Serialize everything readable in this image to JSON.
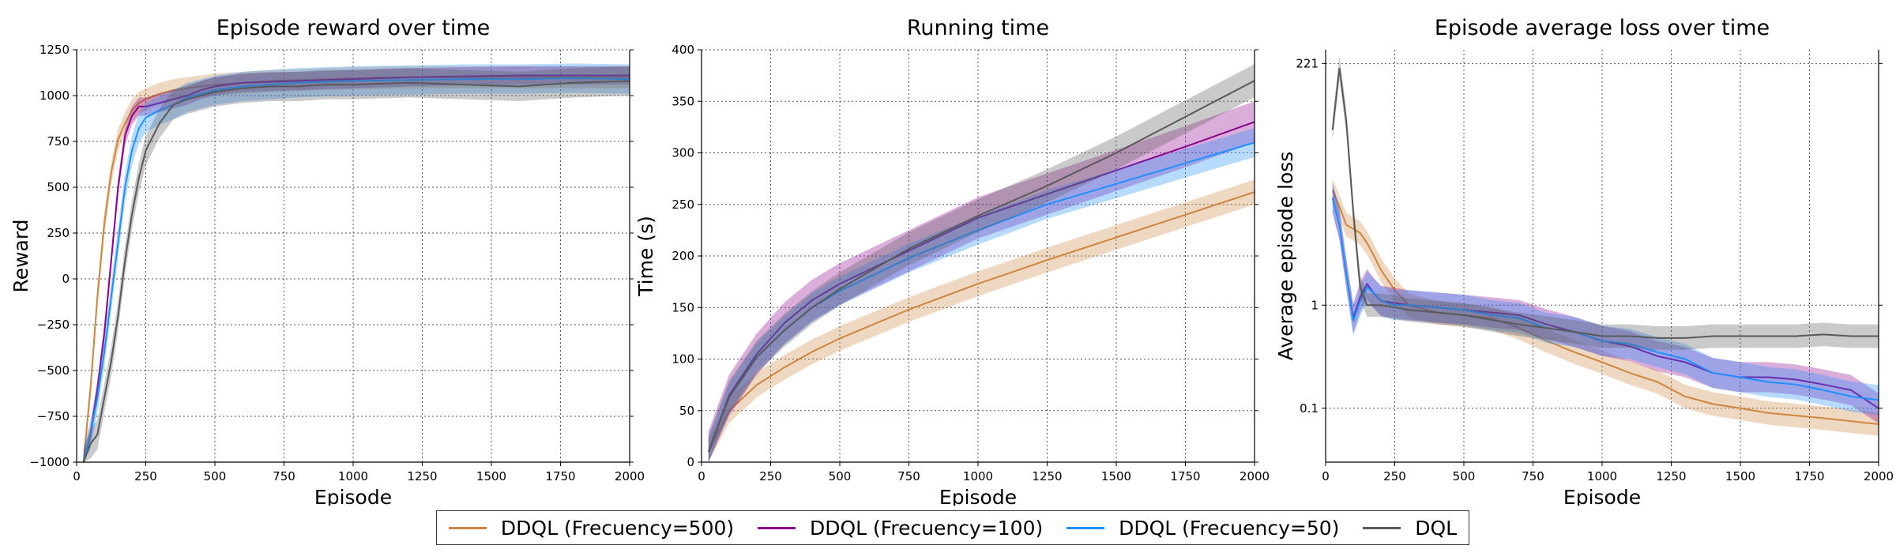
{
  "colors": {
    "ddql500": "#cd853f",
    "ddql100": "#8b008b",
    "ddql50": "#1e90ff",
    "dql": "#595959"
  },
  "legend": [
    {
      "label": "DDQL (Frecuency=500)",
      "color_key": "ddql500"
    },
    {
      "label": "DDQL (Frecuency=100)",
      "color_key": "ddql100"
    },
    {
      "label": "DDQL (Frecuency=50)",
      "color_key": "ddql50"
    },
    {
      "label": "DQL",
      "color_key": "dql"
    }
  ],
  "chart_data": [
    {
      "type": "line",
      "title": "Episode reward over time",
      "xlabel": "Episode",
      "ylabel": "Reward",
      "xlim": [
        0,
        2000
      ],
      "ylim": [
        -1000,
        1250
      ],
      "yscale": "linear",
      "grid": true,
      "xticks": [
        0,
        250,
        500,
        750,
        1000,
        1250,
        1500,
        1750,
        2000
      ],
      "xtick_labels": [
        "0",
        "250",
        "500",
        "750",
        "1000",
        "1250",
        "1500",
        "1750",
        "2000"
      ],
      "yticks": [
        -1000,
        -750,
        -500,
        -250,
        0,
        250,
        500,
        750,
        1000,
        1250
      ],
      "ytick_labels": [
        "−1000",
        "−750",
        "−500",
        "−250",
        "0",
        "250",
        "500",
        "750",
        "1000",
        "1250"
      ],
      "x": [
        25,
        50,
        75,
        100,
        125,
        150,
        175,
        200,
        225,
        250,
        300,
        350,
        400,
        450,
        500,
        600,
        700,
        800,
        900,
        1000,
        1200,
        1400,
        1600,
        1800,
        2000
      ],
      "series": [
        {
          "name": "DDQL (Frecuency=500)",
          "color_key": "ddql500",
          "values": [
            -1000,
            -600,
            -100,
            300,
            580,
            760,
            850,
            920,
            960,
            980,
            1010,
            1030,
            1040,
            1050,
            1060,
            1070,
            1080,
            1085,
            1090,
            1095,
            1100,
            1100,
            1100,
            1100,
            1100
          ],
          "band": 60
        },
        {
          "name": "DDQL (Frecuency=100)",
          "color_key": "ddql100",
          "values": [
            -1000,
            -850,
            -600,
            -300,
            100,
            500,
            780,
            890,
            940,
            940,
            960,
            980,
            1000,
            1030,
            1050,
            1070,
            1075,
            1080,
            1085,
            1090,
            1100,
            1105,
            1110,
            1110,
            1110
          ],
          "band": 50
        },
        {
          "name": "DDQL (Frecuency=50)",
          "color_key": "ddql50",
          "values": [
            -1000,
            -850,
            -650,
            -400,
            -100,
            200,
            500,
            700,
            820,
            880,
            920,
            950,
            990,
            1010,
            1030,
            1050,
            1060,
            1070,
            1075,
            1080,
            1085,
            1090,
            1090,
            1095,
            1090
          ],
          "band": 80
        },
        {
          "name": "DQL",
          "color_key": "dql",
          "values": [
            -1000,
            -900,
            -850,
            -650,
            -450,
            -200,
            100,
            350,
            550,
            700,
            850,
            950,
            980,
            1000,
            1020,
            1040,
            1050,
            1050,
            1060,
            1060,
            1070,
            1060,
            1050,
            1070,
            1080
          ],
          "band": 80
        }
      ]
    },
    {
      "type": "line",
      "title": "Running time",
      "xlabel": "Episode",
      "ylabel": "Time (s)",
      "xlim": [
        0,
        2000
      ],
      "ylim": [
        0,
        400
      ],
      "yscale": "linear",
      "grid": true,
      "xticks": [
        0,
        250,
        500,
        750,
        1000,
        1250,
        1500,
        1750,
        2000
      ],
      "xtick_labels": [
        "0",
        "250",
        "500",
        "750",
        "1000",
        "1250",
        "1500",
        "1750",
        "2000"
      ],
      "yticks": [
        0,
        50,
        100,
        150,
        200,
        250,
        300,
        350,
        400
      ],
      "ytick_labels": [
        "0",
        "50",
        "100",
        "150",
        "200",
        "250",
        "300",
        "350",
        "400"
      ],
      "x": [
        25,
        100,
        200,
        300,
        400,
        500,
        750,
        1000,
        1250,
        1500,
        1750,
        2000
      ],
      "series": [
        {
          "name": "DDQL (Frecuency=500)",
          "color_key": "ddql500",
          "values": [
            10,
            50,
            75,
            92,
            107,
            120,
            148,
            173,
            196,
            218,
            240,
            262
          ],
          "band": 12
        },
        {
          "name": "DDQL (Frecuency=100)",
          "color_key": "ddql100",
          "values": [
            10,
            65,
            105,
            135,
            157,
            173,
            205,
            237,
            260,
            283,
            306,
            330
          ],
          "band": 20
        },
        {
          "name": "DDQL (Frecuency=50)",
          "color_key": "ddql50",
          "values": [
            10,
            63,
            102,
            128,
            150,
            166,
            198,
            225,
            250,
            270,
            290,
            310
          ],
          "band": 14
        },
        {
          "name": "DQL",
          "color_key": "dql",
          "values": [
            10,
            63,
            102,
            128,
            150,
            168,
            207,
            239,
            268,
            300,
            335,
            370
          ],
          "band": 16
        }
      ]
    },
    {
      "type": "line",
      "title": "Episode average loss over time",
      "xlabel": "Episode",
      "ylabel": "Average episode loss",
      "xlim": [
        0,
        2000
      ],
      "ylim": [
        0.03,
        300
      ],
      "yscale": "log",
      "grid": true,
      "xticks": [
        0,
        250,
        500,
        750,
        1000,
        1250,
        1500,
        1750,
        2000
      ],
      "xtick_labels": [
        "0",
        "250",
        "500",
        "750",
        "1000",
        "1250",
        "1500",
        "1750",
        "2000"
      ],
      "yticks": [
        0.1,
        1,
        221
      ],
      "ytick_labels": [
        "0.1",
        "1",
        "221"
      ],
      "x": [
        25,
        50,
        75,
        100,
        125,
        150,
        175,
        200,
        250,
        300,
        400,
        500,
        600,
        700,
        800,
        900,
        1000,
        1100,
        1200,
        1300,
        1400,
        1500,
        1600,
        1700,
        1800,
        1900,
        2000
      ],
      "series": [
        {
          "name": "DDQL (Frecuency=500)",
          "color_key": "ddql500",
          "values": [
            13,
            9,
            6,
            5.5,
            5,
            4,
            3,
            2.2,
            1.4,
            1.0,
            0.85,
            0.8,
            0.75,
            0.6,
            0.45,
            0.35,
            0.28,
            0.22,
            0.18,
            0.13,
            0.11,
            0.1,
            0.09,
            0.085,
            0.08,
            0.075,
            0.07
          ],
          "band_factor": 1.3
        },
        {
          "name": "DDQL (Frecuency=100)",
          "color_key": "ddql100",
          "values": [
            11,
            6,
            2,
            0.75,
            1.2,
            1.6,
            1.3,
            1.1,
            1.05,
            1.0,
            0.95,
            0.9,
            0.85,
            0.8,
            0.65,
            0.55,
            0.45,
            0.4,
            0.32,
            0.28,
            0.22,
            0.2,
            0.2,
            0.19,
            0.17,
            0.15,
            0.1
          ],
          "band_factor": 1.4
        },
        {
          "name": "DDQL (Frecuency=50)",
          "color_key": "ddql50",
          "values": [
            11,
            6,
            2,
            0.7,
            1.1,
            1.5,
            1.3,
            1.1,
            1.0,
            1.0,
            0.95,
            0.9,
            0.8,
            0.75,
            0.6,
            0.55,
            0.45,
            0.42,
            0.35,
            0.3,
            0.22,
            0.2,
            0.18,
            0.17,
            0.15,
            0.13,
            0.12
          ],
          "band_factor": 1.4
        },
        {
          "name": "DQL",
          "color_key": "dql",
          "values": [
            50,
            200,
            60,
            8,
            1.5,
            1.0,
            1.0,
            1.0,
            0.95,
            0.9,
            0.85,
            0.8,
            0.72,
            0.65,
            0.6,
            0.55,
            0.5,
            0.5,
            0.48,
            0.48,
            0.5,
            0.5,
            0.5,
            0.5,
            0.52,
            0.5,
            0.5
          ],
          "band_factor": 1.3
        }
      ]
    }
  ]
}
